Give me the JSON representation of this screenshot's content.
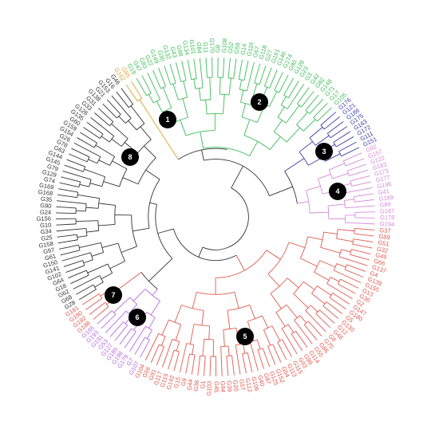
{
  "clusters": [
    {
      "color": "#e0a030",
      "leaves": [
        "G162",
        "G65"
      ]
    },
    {
      "color": "#3dbb5a",
      "leaves": [
        "G19",
        "G47",
        "G83",
        "G22",
        "G149",
        "G30",
        "G132",
        "G43",
        "G88",
        "G134",
        "G101",
        "G84",
        "G11",
        "G170",
        "G8",
        "G108",
        "G52",
        "G59",
        "G14",
        "G116",
        "G67",
        "G118",
        "G27",
        "G161",
        "G140",
        "G174",
        "G80",
        "G128",
        "G23",
        "G3",
        "G42",
        "G82",
        "G148",
        "G71",
        "G17",
        "G105"
      ]
    },
    {
      "color": "#3a3fa8",
      "leaves": [
        "G176",
        "G121",
        "G186",
        "G175",
        "G163",
        "G172",
        "G111",
        "G151"
      ]
    },
    {
      "color": "#d68ad8",
      "leaves": [
        "G92",
        "G157",
        "G122",
        "G183",
        "G173",
        "G177",
        "G196",
        "G41",
        "G189",
        "G89",
        "G187",
        "G178",
        "G194"
      ]
    },
    {
      "color": "#e05a50",
      "leaves": [
        "G37",
        "G99",
        "G51",
        "G32",
        "G49",
        "G66",
        "G137",
        "G4",
        "G139",
        "G155",
        "G13",
        "G36",
        "G2",
        "G147",
        "G180",
        "G5",
        "G130",
        "G12",
        "G48",
        "G6",
        "G70",
        "G86",
        "G55",
        "G114",
        "G98",
        "G93",
        "G115",
        "G113",
        "G54",
        "G152",
        "G125",
        "G87",
        "G40",
        "G106",
        "G112",
        "G57",
        "G20",
        "G39",
        "G94",
        "G45",
        "G103",
        "G1",
        "G38",
        "G44",
        "G9",
        "G15",
        "G142",
        "G119",
        "G117",
        "G91",
        "G56",
        "G104"
      ]
    },
    {
      "color": "#b56ce0",
      "leaves": [
        "G107",
        "G7",
        "G179",
        "G198",
        "G185",
        "G127",
        "G53",
        "G191",
        "G193",
        "G195"
      ]
    },
    {
      "color": "#e05a50",
      "leaves": [
        "G188",
        "G192",
        "G190",
        "G181"
      ]
    },
    {
      "color": "#333333",
      "leaves": [
        "G28",
        "G68",
        "G62",
        "G18",
        "G64",
        "G102",
        "G141",
        "G150",
        "G61",
        "G97",
        "G158",
        "G25",
        "G34",
        "G10",
        "G156",
        "G24",
        "G90",
        "G35",
        "G168",
        "G169",
        "G74",
        "G129",
        "G79",
        "G145",
        "G144",
        "G63",
        "G78",
        "G26",
        "G154",
        "G159",
        "G60",
        "G135",
        "G126",
        "G33",
        "G31",
        "G138",
        "G21",
        "G153",
        "G16",
        "G46"
      ]
    }
  ],
  "nodes": [
    {
      "label": "1"
    },
    {
      "label": "2"
    },
    {
      "label": "3"
    },
    {
      "label": "4"
    },
    {
      "label": "5"
    },
    {
      "label": "6"
    },
    {
      "label": "7"
    },
    {
      "label": "8"
    }
  ]
}
